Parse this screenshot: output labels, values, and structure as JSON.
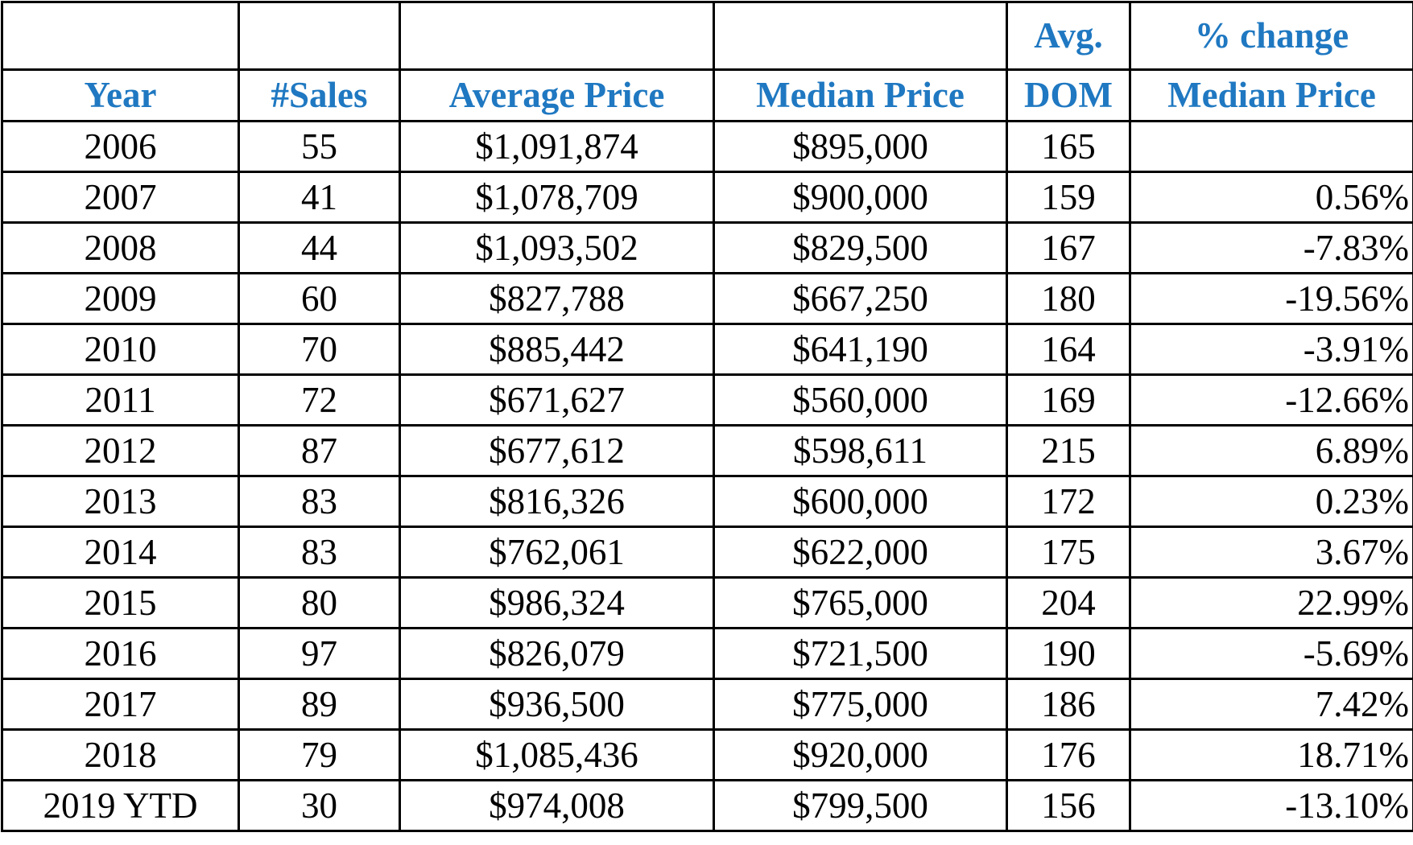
{
  "table": {
    "columns": [
      {
        "lines": [
          "Year"
        ]
      },
      {
        "lines": [
          "#Sales"
        ]
      },
      {
        "lines": [
          "Average Price"
        ]
      },
      {
        "lines": [
          "Median Price"
        ]
      },
      {
        "lines": [
          "Avg.",
          "DOM"
        ]
      },
      {
        "lines": [
          "% change",
          "Median Price"
        ]
      }
    ],
    "rows": [
      [
        "2006",
        "55",
        "$1,091,874",
        "$895,000",
        "165",
        null
      ],
      [
        "2007",
        "41",
        "$1,078,709",
        "$900,000",
        "159",
        "0.56%"
      ],
      [
        "2008",
        "44",
        "$1,093,502",
        "$829,500",
        "167",
        "-7.83%"
      ],
      [
        "2009",
        "60",
        "$827,788",
        "$667,250",
        "180",
        "-19.56%"
      ],
      [
        "2010",
        "70",
        "$885,442",
        "$641,190",
        "164",
        "-3.91%"
      ],
      [
        "2011",
        "72",
        "$671,627",
        "$560,000",
        "169",
        "-12.66%"
      ],
      [
        "2012",
        "87",
        "$677,612",
        "$598,611",
        "215",
        "6.89%"
      ],
      [
        "2013",
        "83",
        "$816,326",
        "$600,000",
        "172",
        "0.23%"
      ],
      [
        "2014",
        "83",
        "$762,061",
        "$622,000",
        "175",
        "3.67%"
      ],
      [
        "2015",
        "80",
        "$986,324",
        "$765,000",
        "204",
        "22.99%"
      ],
      [
        "2016",
        "97",
        "$826,079",
        "$721,500",
        "190",
        "-5.69%"
      ],
      [
        "2017",
        "89",
        "$936,500",
        "$775,000",
        "186",
        "7.42%"
      ],
      [
        "2018",
        "79",
        "$1,085,436",
        "$920,000",
        "176",
        "18.71%"
      ],
      [
        "2019 YTD",
        "30",
        "$974,008",
        "$799,500",
        "156",
        "-13.10%"
      ]
    ]
  }
}
